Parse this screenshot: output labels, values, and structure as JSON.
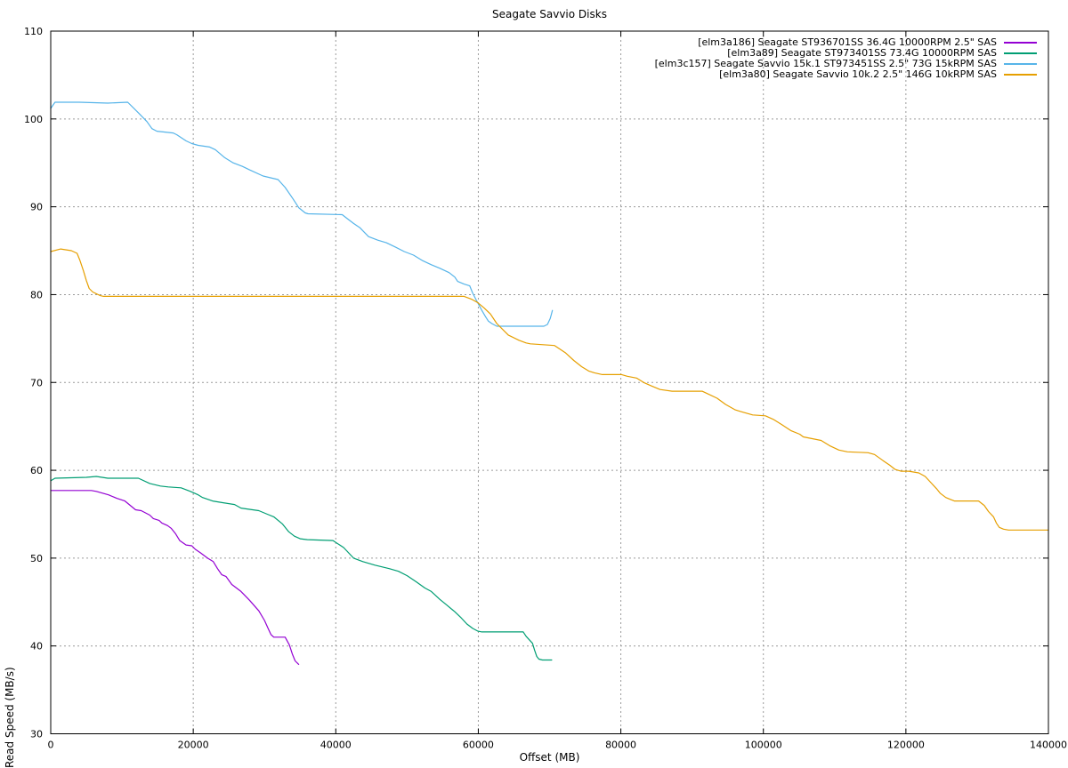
{
  "chart_data": {
    "type": "line",
    "title": "Seagate Savvio Disks",
    "xlabel": "Offset (MB)",
    "ylabel": "Read Speed (MB/s)",
    "xlim": [
      0,
      140000
    ],
    "ylim": [
      30,
      110
    ],
    "xticks": [
      0,
      20000,
      40000,
      60000,
      80000,
      100000,
      120000,
      140000
    ],
    "yticks": [
      30,
      40,
      50,
      60,
      70,
      80,
      90,
      100,
      110
    ],
    "grid": true,
    "grid_color": "#9a9a9a",
    "axis_color": "#000000",
    "legend_position": "top-right-inside",
    "series": [
      {
        "name": "[elm3a186] Seagate ST936701SS 36.4G 10000RPM 2.5\" SAS",
        "color": "#9400d3",
        "points": [
          [
            0,
            57.7
          ],
          [
            1500,
            57.7
          ],
          [
            5700,
            57.7
          ],
          [
            6400,
            57.6
          ],
          [
            8100,
            57.2
          ],
          [
            9300,
            56.8
          ],
          [
            10400,
            56.5
          ],
          [
            11900,
            55.5
          ],
          [
            12700,
            55.4
          ],
          [
            13900,
            54.9
          ],
          [
            14400,
            54.5
          ],
          [
            15200,
            54.3
          ],
          [
            15600,
            54.0
          ],
          [
            16400,
            53.7
          ],
          [
            16900,
            53.4
          ],
          [
            17500,
            52.8
          ],
          [
            18100,
            52.0
          ],
          [
            19000,
            51.5
          ],
          [
            19800,
            51.4
          ],
          [
            20300,
            51.0
          ],
          [
            21000,
            50.6
          ],
          [
            22000,
            50.0
          ],
          [
            22800,
            49.6
          ],
          [
            23400,
            48.8
          ],
          [
            24000,
            48.1
          ],
          [
            24600,
            47.9
          ],
          [
            25400,
            47.0
          ],
          [
            26700,
            46.2
          ],
          [
            27900,
            45.2
          ],
          [
            29200,
            44.0
          ],
          [
            30000,
            42.9
          ],
          [
            30500,
            42.0
          ],
          [
            30900,
            41.3
          ],
          [
            31300,
            41.0
          ],
          [
            32900,
            41.0
          ],
          [
            33500,
            40.1
          ],
          [
            33900,
            39.1
          ],
          [
            34300,
            38.3
          ],
          [
            34800,
            37.9
          ]
        ]
      },
      {
        "name": "[elm3a89] Seagate ST973401SS 73.4G 10000RPM SAS",
        "color": "#009e73",
        "points": [
          [
            0,
            58.8
          ],
          [
            600,
            59.1
          ],
          [
            5000,
            59.2
          ],
          [
            6400,
            59.3
          ],
          [
            8000,
            59.1
          ],
          [
            12300,
            59.1
          ],
          [
            13900,
            58.5
          ],
          [
            15400,
            58.2
          ],
          [
            16500,
            58.1
          ],
          [
            18300,
            58.0
          ],
          [
            19600,
            57.6
          ],
          [
            20700,
            57.2
          ],
          [
            21300,
            56.9
          ],
          [
            22700,
            56.5
          ],
          [
            24200,
            56.3
          ],
          [
            25800,
            56.1
          ],
          [
            26700,
            55.7
          ],
          [
            29200,
            55.4
          ],
          [
            30400,
            55.0
          ],
          [
            31300,
            54.7
          ],
          [
            32500,
            53.9
          ],
          [
            33400,
            53.0
          ],
          [
            34200,
            52.5
          ],
          [
            35000,
            52.2
          ],
          [
            36000,
            52.1
          ],
          [
            39600,
            52.0
          ],
          [
            41100,
            51.2
          ],
          [
            42500,
            50.0
          ],
          [
            43800,
            49.6
          ],
          [
            45500,
            49.2
          ],
          [
            47500,
            48.8
          ],
          [
            48800,
            48.5
          ],
          [
            50000,
            48.0
          ],
          [
            51300,
            47.3
          ],
          [
            52500,
            46.6
          ],
          [
            53400,
            46.2
          ],
          [
            54600,
            45.3
          ],
          [
            55500,
            44.7
          ],
          [
            56700,
            43.9
          ],
          [
            57600,
            43.2
          ],
          [
            58400,
            42.5
          ],
          [
            59200,
            42.0
          ],
          [
            59900,
            41.7
          ],
          [
            60500,
            41.6
          ],
          [
            66300,
            41.6
          ],
          [
            66700,
            41.1
          ],
          [
            67600,
            40.3
          ],
          [
            67900,
            39.5
          ],
          [
            68200,
            38.8
          ],
          [
            68500,
            38.5
          ],
          [
            69000,
            38.4
          ],
          [
            70300,
            38.4
          ]
        ]
      },
      {
        "name": "[elm3c157] Seagate Savvio 15k.1 ST973451SS 2.5\" 73G 15kRPM SAS",
        "color": "#56b4e9",
        "points": [
          [
            0,
            101.2
          ],
          [
            600,
            101.9
          ],
          [
            4000,
            101.9
          ],
          [
            8000,
            101.8
          ],
          [
            10800,
            101.9
          ],
          [
            12300,
            100.7
          ],
          [
            13500,
            99.7
          ],
          [
            14200,
            98.9
          ],
          [
            14900,
            98.6
          ],
          [
            17200,
            98.4
          ],
          [
            17700,
            98.2
          ],
          [
            19000,
            97.5
          ],
          [
            19800,
            97.2
          ],
          [
            20700,
            97.0
          ],
          [
            22300,
            96.8
          ],
          [
            23100,
            96.5
          ],
          [
            24400,
            95.6
          ],
          [
            25600,
            95.0
          ],
          [
            26900,
            94.6
          ],
          [
            27900,
            94.2
          ],
          [
            29800,
            93.5
          ],
          [
            31900,
            93.1
          ],
          [
            32900,
            92.2
          ],
          [
            34000,
            90.9
          ],
          [
            34800,
            89.9
          ],
          [
            35700,
            89.3
          ],
          [
            36100,
            89.2
          ],
          [
            40900,
            89.1
          ],
          [
            41700,
            88.6
          ],
          [
            42500,
            88.1
          ],
          [
            43400,
            87.6
          ],
          [
            44600,
            86.6
          ],
          [
            45900,
            86.2
          ],
          [
            47100,
            85.9
          ],
          [
            48400,
            85.4
          ],
          [
            49600,
            84.9
          ],
          [
            50900,
            84.5
          ],
          [
            52100,
            83.9
          ],
          [
            53400,
            83.4
          ],
          [
            54600,
            83.0
          ],
          [
            55900,
            82.5
          ],
          [
            56700,
            82.0
          ],
          [
            57100,
            81.5
          ],
          [
            58000,
            81.2
          ],
          [
            58800,
            81.0
          ],
          [
            59200,
            80.2
          ],
          [
            59700,
            79.4
          ],
          [
            60100,
            78.8
          ],
          [
            60500,
            78.2
          ],
          [
            61000,
            77.5
          ],
          [
            61400,
            77.0
          ],
          [
            61900,
            76.7
          ],
          [
            62600,
            76.4
          ],
          [
            69200,
            76.4
          ],
          [
            69700,
            76.6
          ],
          [
            70100,
            77.3
          ],
          [
            70400,
            78.2
          ]
        ]
      },
      {
        "name": "[elm3a80] Seagate Savvio 10k.2 2.5\" 146G 10kRPM SAS",
        "color": "#e69f00",
        "points": [
          [
            0,
            84.9
          ],
          [
            1400,
            85.2
          ],
          [
            2900,
            85.0
          ],
          [
            3700,
            84.7
          ],
          [
            4100,
            83.9
          ],
          [
            4600,
            82.7
          ],
          [
            5000,
            81.6
          ],
          [
            5400,
            80.7
          ],
          [
            5900,
            80.3
          ],
          [
            6400,
            80.1
          ],
          [
            6900,
            79.9
          ],
          [
            7400,
            79.8
          ],
          [
            58000,
            79.8
          ],
          [
            59000,
            79.5
          ],
          [
            59900,
            79.1
          ],
          [
            60800,
            78.5
          ],
          [
            61700,
            77.8
          ],
          [
            62600,
            76.7
          ],
          [
            64200,
            75.4
          ],
          [
            65700,
            74.8
          ],
          [
            66700,
            74.5
          ],
          [
            67300,
            74.4
          ],
          [
            70700,
            74.2
          ],
          [
            72200,
            73.4
          ],
          [
            73400,
            72.5
          ],
          [
            74500,
            71.8
          ],
          [
            75500,
            71.3
          ],
          [
            76300,
            71.1
          ],
          [
            77400,
            70.9
          ],
          [
            80100,
            70.9
          ],
          [
            80900,
            70.7
          ],
          [
            82200,
            70.5
          ],
          [
            83200,
            70.0
          ],
          [
            84300,
            69.6
          ],
          [
            85500,
            69.2
          ],
          [
            87200,
            69.0
          ],
          [
            91400,
            69.0
          ],
          [
            92200,
            68.7
          ],
          [
            93500,
            68.2
          ],
          [
            94700,
            67.5
          ],
          [
            96000,
            66.9
          ],
          [
            96800,
            66.7
          ],
          [
            98500,
            66.3
          ],
          [
            100300,
            66.2
          ],
          [
            101400,
            65.8
          ],
          [
            102600,
            65.2
          ],
          [
            103900,
            64.5
          ],
          [
            105100,
            64.1
          ],
          [
            105600,
            63.8
          ],
          [
            108100,
            63.4
          ],
          [
            109300,
            62.8
          ],
          [
            110600,
            62.3
          ],
          [
            111800,
            62.1
          ],
          [
            114700,
            62.0
          ],
          [
            115600,
            61.8
          ],
          [
            116800,
            61.1
          ],
          [
            117700,
            60.6
          ],
          [
            118500,
            60.1
          ],
          [
            119300,
            59.9
          ],
          [
            120400,
            59.9
          ],
          [
            121800,
            59.7
          ],
          [
            122700,
            59.3
          ],
          [
            123500,
            58.6
          ],
          [
            124300,
            57.9
          ],
          [
            124800,
            57.4
          ],
          [
            125600,
            56.9
          ],
          [
            126200,
            56.7
          ],
          [
            126800,
            56.5
          ],
          [
            130200,
            56.5
          ],
          [
            131000,
            56.0
          ],
          [
            131600,
            55.3
          ],
          [
            132300,
            54.7
          ],
          [
            132700,
            54.0
          ],
          [
            133100,
            53.5
          ],
          [
            133700,
            53.3
          ],
          [
            134400,
            53.2
          ],
          [
            140000,
            53.2
          ]
        ]
      }
    ]
  }
}
